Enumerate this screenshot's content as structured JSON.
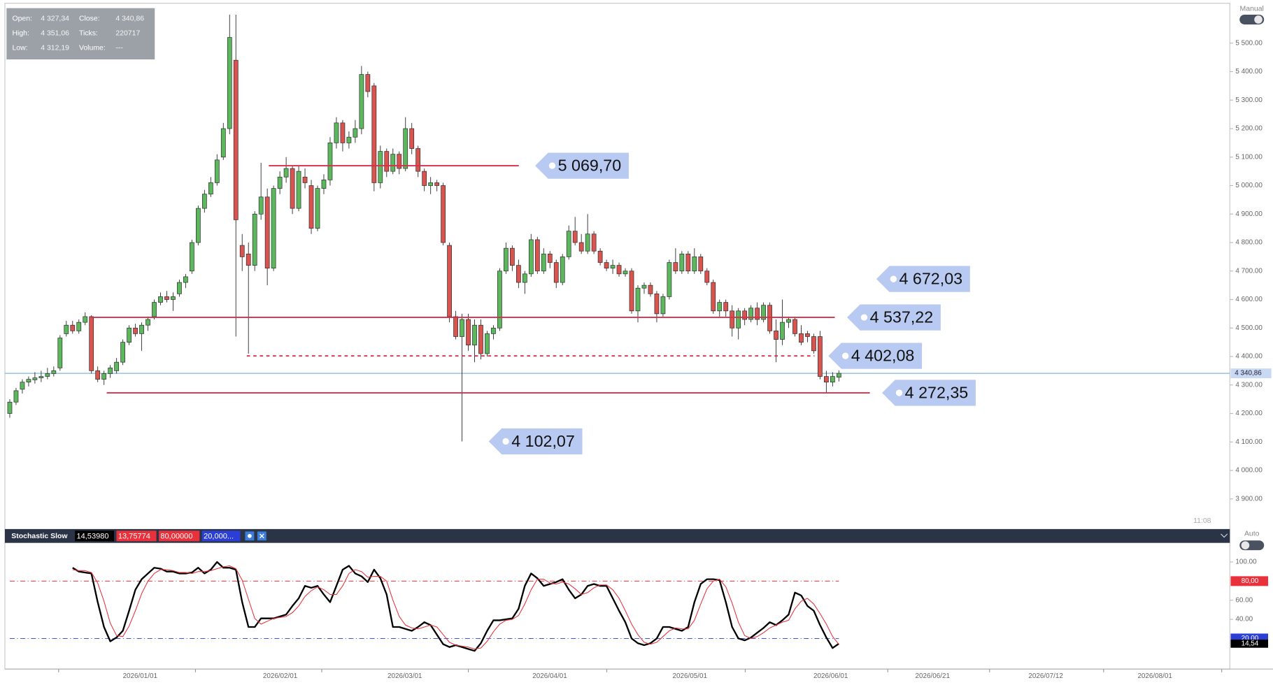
{
  "info": {
    "rows": [
      [
        "Open:",
        "4 327,34",
        "Close:",
        "4 340,86"
      ],
      [
        "High:",
        "4 351,06",
        "Ticks:",
        "220717"
      ],
      [
        "Low:",
        "4 312,19",
        "Volume:",
        "---"
      ]
    ]
  },
  "mode_label": "Manual",
  "auto_label": "Auto",
  "time_label": "11:08",
  "chart_data": [
    {
      "type": "candlestick",
      "colors": {
        "up": "#5cb85c",
        "down": "#d9534f"
      },
      "ylim": [
        3800,
        5640
      ],
      "yticks": [
        {
          "value": 3900,
          "label": "3 900.00"
        },
        {
          "value": 4000,
          "label": "4 000.00"
        },
        {
          "value": 4100,
          "label": "4 100.00"
        },
        {
          "value": 4200,
          "label": "4 200.00"
        },
        {
          "value": 4300,
          "label": "4 300.00"
        },
        {
          "value": 4400,
          "label": "4 400.00"
        },
        {
          "value": 4500,
          "label": "4 500.00"
        },
        {
          "value": 4600,
          "label": "4 600.00"
        },
        {
          "value": 4700,
          "label": "4 700.00"
        },
        {
          "value": 4800,
          "label": "4 800.00"
        },
        {
          "value": 4900,
          "label": "4 900.00"
        },
        {
          "value": 5000,
          "label": "5 000.00"
        },
        {
          "value": 5100,
          "label": "5 100.00"
        },
        {
          "value": 5200,
          "label": "5 200.00"
        },
        {
          "value": 5300,
          "label": "5 300.00"
        },
        {
          "value": 5400,
          "label": "5 400.00"
        },
        {
          "value": 5500,
          "label": "5 500.00"
        }
      ],
      "xtick_labels": [
        "2026/01/01",
        "2026/02/01",
        "2026/03/01",
        "2026/04/01",
        "2026/05/01",
        "2026/06/01",
        "2026/06/21",
        "2026/07/12",
        "2026/08/01"
      ],
      "levels": [
        {
          "value": 5069.7,
          "label": "5 069,70",
          "style": "solid"
        },
        {
          "value": 4537.22,
          "label": "4 537,22",
          "style": "solid"
        },
        {
          "value": 4402.08,
          "label": "4 402,08",
          "style": "dashed"
        },
        {
          "value": 4272.35,
          "label": "4 272,35",
          "style": "solid"
        },
        {
          "value": 4672.03,
          "label": "4 672,03",
          "style": "none"
        },
        {
          "value": 4102.07,
          "label": "4 102,07",
          "style": "none"
        }
      ],
      "current": {
        "value": 4340.86,
        "label": "4 340,86"
      },
      "candles": [
        [
          4200,
          4250,
          4185,
          4240
        ],
        [
          4240,
          4290,
          4230,
          4280
        ],
        [
          4285,
          4320,
          4270,
          4310
        ],
        [
          4310,
          4330,
          4295,
          4320
        ],
        [
          4318,
          4345,
          4305,
          4325
        ],
        [
          4325,
          4350,
          4310,
          4330
        ],
        [
          4330,
          4360,
          4320,
          4340
        ],
        [
          4340,
          4365,
          4330,
          4350
        ],
        [
          4360,
          4475,
          4350,
          4465
        ],
        [
          4480,
          4525,
          4470,
          4510
        ],
        [
          4510,
          4525,
          4480,
          4490
        ],
        [
          4490,
          4530,
          4480,
          4520
        ],
        [
          4520,
          4555,
          4510,
          4540
        ],
        [
          4540,
          4545,
          4340,
          4350
        ],
        [
          4350,
          4365,
          4310,
          4320
        ],
        [
          4320,
          4350,
          4300,
          4340
        ],
        [
          4340,
          4370,
          4325,
          4360
        ],
        [
          4350,
          4395,
          4340,
          4380
        ],
        [
          4380,
          4460,
          4370,
          4450
        ],
        [
          4450,
          4510,
          4440,
          4500
        ],
        [
          4500,
          4515,
          4470,
          4480
        ],
        [
          4480,
          4520,
          4420,
          4510
        ],
        [
          4510,
          4540,
          4490,
          4530
        ],
        [
          4540,
          4600,
          4530,
          4590
        ],
        [
          4590,
          4625,
          4580,
          4610
        ],
        [
          4610,
          4630,
          4590,
          4600
        ],
        [
          4600,
          4625,
          4560,
          4610
        ],
        [
          4620,
          4670,
          4610,
          4660
        ],
        [
          4660,
          4690,
          4640,
          4680
        ],
        [
          4700,
          4810,
          4690,
          4800
        ],
        [
          4800,
          4930,
          4790,
          4920
        ],
        [
          4920,
          4985,
          4905,
          4970
        ],
        [
          4970,
          5030,
          4960,
          5010
        ],
        [
          5010,
          5110,
          5000,
          5090
        ],
        [
          5100,
          5220,
          5090,
          5200
        ],
        [
          5200,
          5600,
          5180,
          5520
        ],
        [
          5440,
          5600,
          4470,
          4880
        ],
        [
          4790,
          4830,
          4700,
          4750
        ],
        [
          4760,
          4800,
          4410,
          4720
        ],
        [
          4720,
          4910,
          4700,
          4900
        ],
        [
          4900,
          5080,
          4880,
          4960
        ],
        [
          4960,
          4990,
          4650,
          4710
        ],
        [
          4710,
          5000,
          4700,
          4990
        ],
        [
          4990,
          5050,
          4970,
          5030
        ],
        [
          5030,
          5100,
          5010,
          5060
        ],
        [
          5060,
          5070,
          4900,
          4920
        ],
        [
          4920,
          5070,
          4910,
          5050
        ],
        [
          5030,
          5060,
          4990,
          5010
        ],
        [
          5000,
          5020,
          4830,
          4850
        ],
        [
          4850,
          5000,
          4840,
          4990
        ],
        [
          4990,
          5040,
          4970,
          5020
        ],
        [
          5020,
          5170,
          5000,
          5150
        ],
        [
          5150,
          5240,
          5130,
          5220
        ],
        [
          5220,
          5230,
          5120,
          5150
        ],
        [
          5150,
          5190,
          5130,
          5170
        ],
        [
          5170,
          5230,
          5150,
          5200
        ],
        [
          5200,
          5420,
          5180,
          5390
        ],
        [
          5390,
          5400,
          5310,
          5330
        ],
        [
          5350,
          5360,
          4980,
          5010
        ],
        [
          5010,
          5140,
          4990,
          5120
        ],
        [
          5120,
          5130,
          5030,
          5050
        ],
        [
          5050,
          5130,
          5040,
          5110
        ],
        [
          5110,
          5120,
          5040,
          5060
        ],
        [
          5060,
          5240,
          5050,
          5200
        ],
        [
          5200,
          5220,
          5110,
          5130
        ],
        [
          5130,
          5140,
          5030,
          5050
        ],
        [
          5050,
          5060,
          4980,
          5000
        ],
        [
          5000,
          5030,
          4970,
          5010
        ],
        [
          5010,
          5020,
          4980,
          5000
        ],
        [
          5000,
          5010,
          4790,
          4800
        ],
        [
          4790,
          4800,
          4520,
          4540
        ],
        [
          4540,
          4560,
          4460,
          4470
        ],
        [
          4470,
          4550,
          4102.07,
          4530
        ],
        [
          4530,
          4550,
          4420,
          4440
        ],
        [
          4440,
          4530,
          4380,
          4510
        ],
        [
          4510,
          4530,
          4390,
          4410
        ],
        [
          4410,
          4490,
          4400,
          4480
        ],
        [
          4480,
          4510,
          4460,
          4500
        ],
        [
          4500,
          4710,
          4490,
          4700
        ],
        [
          4700,
          4800,
          4690,
          4780
        ],
        [
          4780,
          4790,
          4700,
          4720
        ],
        [
          4720,
          4740,
          4640,
          4660
        ],
        [
          4660,
          4700,
          4620,
          4690
        ],
        [
          4690,
          4830,
          4680,
          4810
        ],
        [
          4810,
          4820,
          4690,
          4700
        ],
        [
          4700,
          4780,
          4690,
          4760
        ],
        [
          4760,
          4770,
          4710,
          4730
        ],
        [
          4730,
          4740,
          4640,
          4660
        ],
        [
          4660,
          4760,
          4650,
          4750
        ],
        [
          4750,
          4860,
          4740,
          4840
        ],
        [
          4840,
          4890,
          4790,
          4800
        ],
        [
          4800,
          4830,
          4760,
          4770
        ],
        [
          4770,
          4900,
          4760,
          4830
        ],
        [
          4830,
          4840,
          4760,
          4770
        ],
        [
          4770,
          4780,
          4720,
          4730
        ],
        [
          4730,
          4740,
          4700,
          4710
        ],
        [
          4710,
          4740,
          4690,
          4720
        ],
        [
          4720,
          4730,
          4680,
          4690
        ],
        [
          4690,
          4710,
          4680,
          4700
        ],
        [
          4700,
          4710,
          4550,
          4560
        ],
        [
          4560,
          4650,
          4520,
          4640
        ],
        [
          4640,
          4660,
          4620,
          4650
        ],
        [
          4650,
          4660,
          4610,
          4620
        ],
        [
          4620,
          4630,
          4520,
          4550
        ],
        [
          4550,
          4620,
          4540,
          4610
        ],
        [
          4610,
          4740,
          4600,
          4730
        ],
        [
          4730,
          4780,
          4690,
          4700
        ],
        [
          4700,
          4770,
          4690,
          4760
        ],
        [
          4760,
          4770,
          4690,
          4700
        ],
        [
          4700,
          4780,
          4690,
          4750
        ],
        [
          4750,
          4760,
          4690,
          4700
        ],
        [
          4700,
          4710,
          4650,
          4660
        ],
        [
          4660,
          4670,
          4550,
          4560
        ],
        [
          4560,
          4600,
          4540,
          4590
        ],
        [
          4590,
          4600,
          4540,
          4560
        ],
        [
          4560,
          4580,
          4470,
          4500
        ],
        [
          4500,
          4570,
          4460,
          4560
        ],
        [
          4560,
          4570,
          4510,
          4530
        ],
        [
          4530,
          4580,
          4520,
          4570
        ],
        [
          4570,
          4590,
          4510,
          4530
        ],
        [
          4530,
          4590,
          4520,
          4580
        ],
        [
          4580,
          4590,
          4480,
          4490
        ],
        [
          4490,
          4530,
          4380,
          4460
        ],
        [
          4460,
          4600,
          4440,
          4520
        ],
        [
          4520,
          4540,
          4500,
          4530
        ],
        [
          4530,
          4540,
          4470,
          4480
        ],
        [
          4480,
          4510,
          4440,
          4450
        ],
        [
          4480,
          4490,
          4450,
          4470
        ],
        [
          4470,
          4480,
          4410,
          4420
        ],
        [
          4470,
          4490,
          4320,
          4330
        ],
        [
          4330,
          4350,
          4272.35,
          4310
        ],
        [
          4310,
          4345,
          4295,
          4330
        ],
        [
          4327.34,
          4351.06,
          4312.19,
          4340.86
        ]
      ]
    },
    {
      "type": "line",
      "title": "Stochastic Slow",
      "header_values": [
        {
          "label": "14,53980",
          "color": "#000000"
        },
        {
          "label": "13,75774",
          "color": "#e8313b"
        },
        {
          "label": "80,00000",
          "color": "#e8313b"
        },
        {
          "label": "20,000...",
          "color": "#2b3fd6"
        }
      ],
      "ylim": [
        -12,
        120
      ],
      "yticks": [
        {
          "value": 100,
          "label": "100.00"
        },
        {
          "value": 60,
          "label": "60.00"
        },
        {
          "value": 40,
          "label": "40.00"
        }
      ],
      "levels": [
        {
          "value": 80,
          "label": "80,00",
          "color": "#e8313b"
        },
        {
          "value": 20,
          "label": "20,00",
          "color": "#2b3fd6"
        }
      ],
      "current": {
        "value": 14.5398,
        "label": "14,54"
      },
      "series": [
        {
          "color": "#000000",
          "values": [
            null,
            null,
            null,
            null,
            null,
            null,
            null,
            null,
            null,
            null,
            94,
            90,
            89,
            88,
            58,
            32,
            17,
            21,
            28,
            49,
            71,
            82,
            88,
            94,
            93,
            90,
            90,
            88,
            88,
            89,
            94,
            88,
            92,
            100,
            94,
            94,
            92,
            58,
            32,
            32,
            41,
            41,
            41,
            43,
            45,
            54,
            62,
            75,
            73,
            75,
            66,
            58,
            75,
            92,
            96,
            88,
            85,
            79,
            92,
            83,
            66,
            32,
            32,
            30,
            28,
            32,
            37,
            34,
            24,
            14,
            11,
            13,
            11,
            9,
            7,
            15,
            28,
            39,
            39,
            40,
            41,
            51,
            75,
            88,
            83,
            75,
            77,
            79,
            82,
            71,
            62,
            66,
            75,
            77,
            75,
            75,
            62,
            49,
            37,
            20,
            15,
            13,
            15,
            20,
            32,
            32,
            30,
            28,
            32,
            58,
            77,
            82,
            82,
            81,
            58,
            32,
            20,
            18,
            21,
            26,
            31,
            37,
            34,
            39,
            45,
            68,
            65,
            54,
            49,
            34,
            21,
            10,
            14.5398
          ]
        },
        {
          "color": "#e8313b",
          "values": [
            null,
            null,
            null,
            null,
            null,
            null,
            null,
            null,
            null,
            null,
            92,
            91,
            91,
            89,
            78,
            59,
            36,
            23,
            22,
            33,
            49,
            67,
            80,
            88,
            92,
            92,
            91,
            89,
            89,
            88,
            90,
            90,
            91,
            93,
            95,
            96,
            93,
            81,
            61,
            41,
            35,
            38,
            41,
            42,
            43,
            47,
            54,
            64,
            70,
            74,
            71,
            66,
            66,
            75,
            88,
            92,
            90,
            84,
            85,
            85,
            80,
            60,
            43,
            34,
            31,
            30,
            32,
            34,
            32,
            24,
            16,
            13,
            12,
            11,
            9,
            10,
            17,
            27,
            35,
            39,
            40,
            44,
            56,
            71,
            82,
            82,
            78,
            77,
            79,
            77,
            72,
            66,
            68,
            73,
            76,
            76,
            71,
            62,
            49,
            35,
            24,
            16,
            14,
            16,
            22,
            28,
            31,
            30,
            30,
            39,
            56,
            72,
            80,
            82,
            74,
            57,
            37,
            23,
            20,
            22,
            26,
            31,
            34,
            37,
            39,
            51,
            59,
            62,
            56,
            46,
            35,
            22,
            13.75774
          ]
        }
      ]
    }
  ]
}
